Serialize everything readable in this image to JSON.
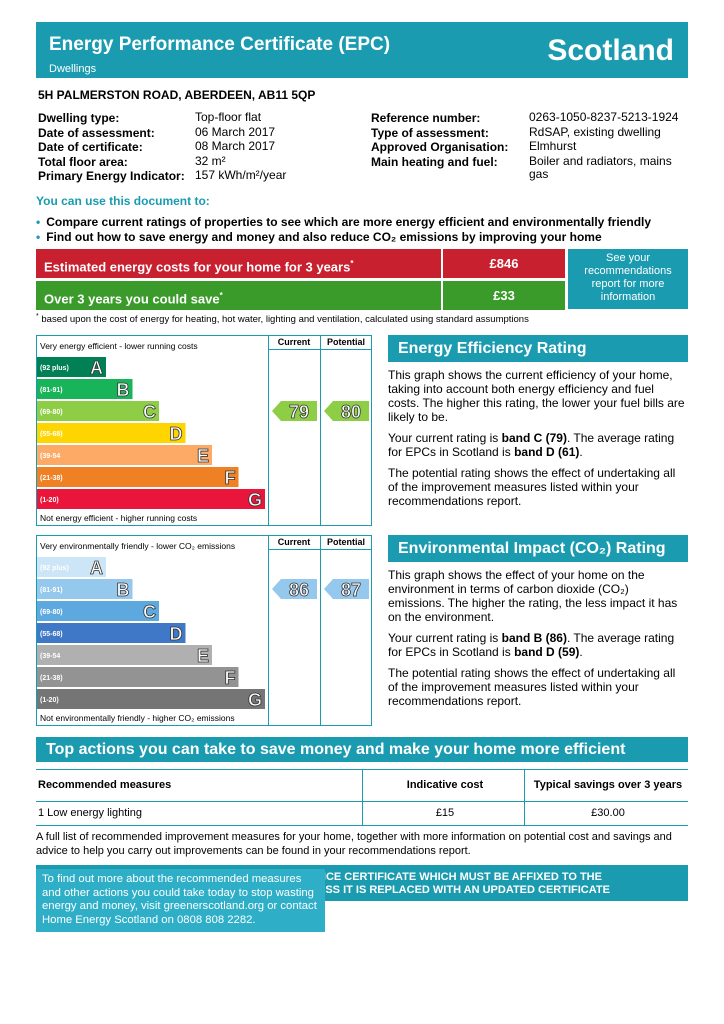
{
  "header": {
    "title": "Energy Performance Certificate (EPC)",
    "subtitle": "Dwellings",
    "country": "Scotland"
  },
  "address": "5H PALMERSTON ROAD, ABERDEEN, AB11 5QP",
  "details": {
    "left": [
      {
        "label": "Dwelling type:",
        "value": "Top-floor flat"
      },
      {
        "label": "Date of assessment:",
        "value": "06 March 2017"
      },
      {
        "label": "Date of certificate:",
        "value": "08 March 2017"
      },
      {
        "label": "Total floor area:",
        "value": "32 m²"
      },
      {
        "label": "Primary Energy Indicator:",
        "value": "157 kWh/m²/year"
      }
    ],
    "right": [
      {
        "label": "Reference number:",
        "value": "0263-1050-8237-5213-1924"
      },
      {
        "label": "Type of assessment:",
        "value": "RdSAP, existing dwelling"
      },
      {
        "label": "Approved Organisation:",
        "value": "Elmhurst"
      },
      {
        "label": "Main heating and fuel:",
        "value": "Boiler and radiators, mains gas"
      }
    ]
  },
  "usage": {
    "heading": "You can use this document to:",
    "bullets": [
      "Compare current ratings of properties to see which are more energy efficient and environmentally friendly",
      "Find out how to save energy and money and also reduce CO₂ emissions by improving your home"
    ]
  },
  "costs": {
    "rows": [
      {
        "label": "Estimated energy costs for your home for 3 years",
        "marker": "*",
        "value": "£846"
      },
      {
        "label": "Over 3 years you could save",
        "marker": "*",
        "value": "£33"
      }
    ],
    "link": "See your recommendations report for more information",
    "footnote_marker": "*",
    "footnote": "based upon the cost of energy for heating, hot water, lighting and ventilation, calculated using standard assumptions"
  },
  "ratings": [
    {
      "top_note": "Very energy efficient - lower running costs",
      "bottom_note": "Not energy efficient - higher running costs",
      "columns": [
        "Current",
        "Potential"
      ],
      "bands": [
        {
          "range": "(92 plus)",
          "letter": "A",
          "color": "#008054"
        },
        {
          "range": "(81-91)",
          "letter": "B",
          "color": "#19b459"
        },
        {
          "range": "(69-80)",
          "letter": "C",
          "color": "#8dce46"
        },
        {
          "range": "(55-68)",
          "letter": "D",
          "color": "#ffd500"
        },
        {
          "range": "(39-54",
          "letter": "E",
          "color": "#fcaa65"
        },
        {
          "range": "(21-38)",
          "letter": "F",
          "color": "#ef8023"
        },
        {
          "range": "(1-20)",
          "letter": "G",
          "color": "#e9153b"
        }
      ],
      "arrow_color": "#8dce46",
      "current": 79,
      "potential": 80,
      "panel": {
        "title": "Energy Efficiency Rating",
        "paragraphs": [
          [
            "This graph shows the current efficiency of your home, taking into account both energy efficiency and fuel costs. The higher this rating, the lower your fuel bills are likely to be."
          ],
          [
            "Your current rating is ",
            "band C (79)",
            ". The average rating for EPCs in Scotland is ",
            "band D (61)",
            "."
          ],
          [
            "The potential rating shows the effect of undertaking all of the improvement measures listed within your recommendations report."
          ]
        ]
      }
    },
    {
      "top_note": "Very environmentally friendly - lower CO₂ emissions",
      "bottom_note": "Not environmentally friendly - higher CO₂ emissions",
      "columns": [
        "Current",
        "Potential"
      ],
      "bands": [
        {
          "range": "(92 plus)",
          "letter": "A",
          "color": "#cde6f7"
        },
        {
          "range": "(81-91)",
          "letter": "B",
          "color": "#94c8ec"
        },
        {
          "range": "(69-80)",
          "letter": "C",
          "color": "#5ea8e0"
        },
        {
          "range": "(55-68)",
          "letter": "D",
          "color": "#3f78c6"
        },
        {
          "range": "(39-54",
          "letter": "E",
          "color": "#b0b0b0"
        },
        {
          "range": "(21-38)",
          "letter": "F",
          "color": "#939393"
        },
        {
          "range": "(1-20)",
          "letter": "G",
          "color": "#757575"
        }
      ],
      "arrow_color": "#94c8ec",
      "current": 86,
      "potential": 87,
      "panel": {
        "title": "Environmental Impact (CO₂) Rating",
        "paragraphs": [
          [
            "This graph shows the effect of your home on the environment in terms of carbon dioxide (CO₂) emissions. The higher the rating, the less impact it has on the environment."
          ],
          [
            "Your current rating is ",
            "band B (86)",
            ". The average rating for EPCs in Scotland is ",
            "band D (59)",
            "."
          ],
          [
            "The potential rating shows the effect of undertaking all of the improvement measures listed within your recommendations report."
          ]
        ]
      }
    }
  ],
  "actions": {
    "title": "Top actions you can take to save money and make your home more efficient",
    "headers": [
      "Recommended measures",
      "Indicative cost",
      "Typical savings over 3 years"
    ],
    "rows": [
      [
        "1 Low energy lighting",
        "£15",
        "£30.00"
      ]
    ],
    "note": "A full list of recommended improvement measures for your home, together with more information on potential cost and savings and advice to help you carry out improvements can be found in your recommendations report."
  },
  "banner": [
    "NCE CERTIFICATE WHICH MUST BE AFFIXED TO THE",
    "ESS IT IS REPLACED WITH AN UPDATED CERTIFICATE"
  ],
  "overlay": "To find out more about the recommended measures and other actions you could take today to stop wasting energy and money, visit greenerscotland.org or contact Home Energy Scotland on 0808 808 2282."
}
